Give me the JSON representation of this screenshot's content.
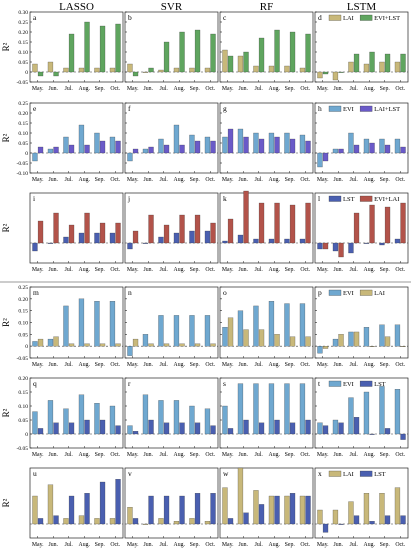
{
  "figure": {
    "columns": [
      "LASSO",
      "SVR",
      "RF",
      "LSTM"
    ],
    "months": [
      "May.",
      "Jun.",
      "Jul.",
      "Aug.",
      "Sep.",
      "Oct."
    ],
    "ylabel": "R²"
  },
  "colors": {
    "LAI": "#C8B87A",
    "EVI": "#6FA8D0",
    "LST": "#4A5FB0",
    "EVI+LST": "#5FA55F",
    "LAI+LST": "#6A5AC8",
    "EVI+LAI": "#B2534A"
  },
  "chart_data": [
    {
      "type": "bar",
      "panel": "a",
      "legend": [
        "LAI",
        "EVI+LST"
      ],
      "categories": [
        "May.",
        "Jun.",
        "Jul.",
        "Aug.",
        "Sep.",
        "Oct."
      ],
      "ylim": [
        -0.05,
        0.3
      ],
      "yticks": [
        -0.05,
        0,
        0.05,
        0.1,
        0.15,
        0.2,
        0.25,
        0.3
      ],
      "series": [
        {
          "name": "LAI",
          "values": [
            0.04,
            0.05,
            0.02,
            0.02,
            0.02,
            0.02
          ]
        },
        {
          "name": "EVI+LST",
          "values": [
            -0.02,
            -0.02,
            0.19,
            0.25,
            0.23,
            0.24
          ]
        }
      ]
    },
    {
      "type": "bar",
      "panel": "b",
      "legend": [
        "LAI",
        "EVI+LST"
      ],
      "categories": [
        "May.",
        "Jun.",
        "Jul.",
        "Aug.",
        "Sep.",
        "Oct."
      ],
      "ylim": [
        -0.05,
        0.3
      ],
      "series": [
        {
          "name": "LAI",
          "values": [
            0.04,
            0.0,
            0.01,
            0.02,
            0.02,
            0.02
          ]
        },
        {
          "name": "EVI+LST",
          "values": [
            -0.02,
            0.02,
            0.15,
            0.2,
            0.21,
            0.19
          ]
        }
      ]
    },
    {
      "type": "bar",
      "panel": "c",
      "legend": [
        "LAI",
        "EVI+LST"
      ],
      "categories": [
        "May.",
        "Jun.",
        "Jul.",
        "Aug.",
        "Sep.",
        "Oct."
      ],
      "ylim": [
        -0.05,
        0.3
      ],
      "series": [
        {
          "name": "LAI",
          "values": [
            0.11,
            0.08,
            0.03,
            0.03,
            0.03,
            0.02
          ]
        },
        {
          "name": "EVI+LST",
          "values": [
            0.08,
            0.1,
            0.17,
            0.21,
            0.2,
            0.19
          ]
        }
      ]
    },
    {
      "type": "bar",
      "panel": "d",
      "legend": [
        "LAI",
        "EVI+LST"
      ],
      "categories": [
        "May.",
        "Jun.",
        "Jul.",
        "Aug.",
        "Sep.",
        "Oct."
      ],
      "ylim": [
        -0.05,
        0.3
      ],
      "series": [
        {
          "name": "LAI",
          "values": [
            -0.03,
            -0.04,
            0.05,
            0.04,
            0.05,
            0.05
          ]
        },
        {
          "name": "EVI+LST",
          "values": [
            -0.01,
            0.0,
            0.09,
            0.1,
            0.09,
            0.09
          ]
        }
      ]
    },
    {
      "type": "bar",
      "panel": "e",
      "legend": [
        "EVI",
        "LAI+LST"
      ],
      "categories": [
        "May.",
        "Jun.",
        "Jul.",
        "Aug.",
        "Sep.",
        "Oct."
      ],
      "ylim": [
        -0.1,
        0.25
      ],
      "yticks": [
        -0.1,
        -0.05,
        0,
        0.05,
        0.1,
        0.15,
        0.2,
        0.25
      ],
      "series": [
        {
          "name": "EVI",
          "values": [
            -0.04,
            0.02,
            0.08,
            0.14,
            0.1,
            0.08
          ]
        },
        {
          "name": "LAI+LST",
          "values": [
            0.03,
            0.03,
            0.04,
            0.04,
            0.06,
            0.06
          ]
        }
      ]
    },
    {
      "type": "bar",
      "panel": "f",
      "legend": [
        "EVI",
        "LAI+LST"
      ],
      "categories": [
        "May.",
        "Jun.",
        "Jul.",
        "Aug.",
        "Sep.",
        "Oct."
      ],
      "ylim": [
        -0.1,
        0.25
      ],
      "series": [
        {
          "name": "EVI",
          "values": [
            -0.04,
            0.02,
            0.07,
            0.14,
            0.09,
            0.08
          ]
        },
        {
          "name": "LAI+LST",
          "values": [
            0.02,
            0.03,
            0.04,
            0.04,
            0.06,
            0.06
          ]
        }
      ]
    },
    {
      "type": "bar",
      "panel": "g",
      "legend": [
        "EVI",
        "LAI+LST"
      ],
      "categories": [
        "May.",
        "Jun.",
        "Jul.",
        "Aug.",
        "Sep.",
        "Oct."
      ],
      "ylim": [
        -0.1,
        0.25
      ],
      "series": [
        {
          "name": "EVI",
          "values": [
            0.08,
            0.12,
            0.1,
            0.1,
            0.1,
            0.09
          ]
        },
        {
          "name": "LAI+LST",
          "values": [
            0.12,
            0.08,
            0.07,
            0.08,
            0.07,
            0.06
          ]
        }
      ]
    },
    {
      "type": "bar",
      "panel": "h",
      "legend": [
        "EVI",
        "LAI+LST"
      ],
      "categories": [
        "May.",
        "Jun.",
        "Jul.",
        "Aug.",
        "Sep.",
        "Oct."
      ],
      "ylim": [
        -0.1,
        0.25
      ],
      "series": [
        {
          "name": "EVI",
          "values": [
            -0.07,
            0.02,
            0.1,
            0.07,
            0.07,
            0.07
          ]
        },
        {
          "name": "LAI+LST",
          "values": [
            -0.04,
            0.02,
            0.04,
            0.05,
            0.04,
            0.03
          ]
        }
      ]
    },
    {
      "type": "bar",
      "panel": "i",
      "legend": [
        "LST",
        "EVI+LAI"
      ],
      "categories": [
        "May.",
        "Jun.",
        "Jul.",
        "Aug.",
        "Sep.",
        "Oct."
      ],
      "ylim": [
        -0.1,
        0.25
      ],
      "series": [
        {
          "name": "LST",
          "values": [
            -0.04,
            0.0,
            0.03,
            0.05,
            0.05,
            0.05
          ]
        },
        {
          "name": "EVI+LAI",
          "values": [
            0.11,
            0.15,
            0.09,
            0.15,
            0.1,
            0.1
          ]
        }
      ]
    },
    {
      "type": "bar",
      "panel": "j",
      "legend": [
        "LST",
        "EVI+LAI"
      ],
      "categories": [
        "May.",
        "Jun.",
        "Jul.",
        "Aug.",
        "Sep.",
        "Oct."
      ],
      "ylim": [
        -0.1,
        0.25
      ],
      "series": [
        {
          "name": "LST",
          "values": [
            -0.03,
            0.0,
            0.03,
            0.05,
            0.06,
            0.06
          ]
        },
        {
          "name": "EVI+LAI",
          "values": [
            0.06,
            0.14,
            0.09,
            0.14,
            0.14,
            0.1
          ]
        }
      ]
    },
    {
      "type": "bar",
      "panel": "k",
      "legend": [
        "LST",
        "EVI+LAI"
      ],
      "categories": [
        "May.",
        "Jun.",
        "Jul.",
        "Aug.",
        "Sep.",
        "Oct."
      ],
      "ylim": [
        -0.1,
        0.25
      ],
      "series": [
        {
          "name": "LST",
          "values": [
            0.01,
            0.04,
            0.02,
            0.02,
            0.02,
            0.02
          ]
        },
        {
          "name": "EVI+LAI",
          "values": [
            0.12,
            0.26,
            0.2,
            0.2,
            0.19,
            0.2
          ]
        }
      ]
    },
    {
      "type": "bar",
      "panel": "l",
      "legend": [
        "LST",
        "EVI+LAI"
      ],
      "categories": [
        "May.",
        "Jun.",
        "Jul.",
        "Aug.",
        "Sep.",
        "Oct."
      ],
      "ylim": [
        -0.1,
        0.25
      ],
      "series": [
        {
          "name": "LST",
          "values": [
            -0.03,
            -0.04,
            -0.05,
            0.0,
            -0.01,
            0.02
          ]
        },
        {
          "name": "EVI+LAI",
          "values": [
            -0.03,
            -0.07,
            0.15,
            0.19,
            0.18,
            0.2
          ]
        }
      ]
    },
    {
      "type": "bar",
      "panel": "m",
      "legend": [
        "EVI",
        "LAI"
      ],
      "categories": [
        "May.",
        "Jun.",
        "Jul.",
        "Aug.",
        "Sep.",
        "Oct."
      ],
      "ylim": [
        -0.05,
        0.25
      ],
      "yticks": [
        -0.05,
        0,
        0.05,
        0.1,
        0.15,
        0.2,
        0.25
      ],
      "series": [
        {
          "name": "EVI",
          "values": [
            0.02,
            0.03,
            0.17,
            0.2,
            0.19,
            0.19
          ]
        },
        {
          "name": "LAI",
          "values": [
            0.03,
            0.04,
            0.01,
            0.01,
            0.01,
            0.01
          ]
        }
      ]
    },
    {
      "type": "bar",
      "panel": "n",
      "legend": [
        "EVI",
        "LAI"
      ],
      "categories": [
        "May.",
        "Jun.",
        "Jul.",
        "Aug.",
        "Sep.",
        "Oct."
      ],
      "ylim": [
        -0.05,
        0.25
      ],
      "series": [
        {
          "name": "EVI",
          "values": [
            -0.04,
            0.05,
            0.13,
            0.13,
            0.13,
            0.13
          ]
        },
        {
          "name": "LAI",
          "values": [
            0.03,
            0.01,
            0.01,
            0.01,
            0.01,
            0.01
          ]
        }
      ]
    },
    {
      "type": "bar",
      "panel": "o",
      "legend": [
        "EVI",
        "LAI"
      ],
      "categories": [
        "May.",
        "Jun.",
        "Jul.",
        "Aug.",
        "Sep.",
        "Oct."
      ],
      "ylim": [
        -0.05,
        0.25
      ],
      "series": [
        {
          "name": "EVI",
          "values": [
            0.08,
            0.15,
            0.17,
            0.19,
            0.18,
            0.18
          ]
        },
        {
          "name": "LAI",
          "values": [
            0.12,
            0.07,
            0.07,
            0.05,
            0.04,
            0.04
          ]
        }
      ]
    },
    {
      "type": "bar",
      "panel": "p",
      "legend": [
        "EVI",
        "LAI"
      ],
      "categories": [
        "May.",
        "Jun.",
        "Jul.",
        "Aug.",
        "Sep.",
        "Oct."
      ],
      "ylim": [
        -0.05,
        0.25
      ],
      "series": [
        {
          "name": "EVI",
          "values": [
            -0.03,
            0.03,
            0.06,
            0.08,
            0.09,
            0.09
          ]
        },
        {
          "name": "LAI",
          "values": [
            -0.01,
            0.05,
            0.06,
            0.0,
            0.04,
            0.0
          ]
        }
      ]
    },
    {
      "type": "bar",
      "panel": "q",
      "legend": [
        "EVI",
        "LST"
      ],
      "categories": [
        "May.",
        "Jun.",
        "Jul.",
        "Aug.",
        "Sep.",
        "Oct."
      ],
      "ylim": [
        -0.05,
        0.2
      ],
      "yticks": [
        -0.05,
        0,
        0.05,
        0.1,
        0.15,
        0.2
      ],
      "series": [
        {
          "name": "EVI",
          "values": [
            0.08,
            0.12,
            0.09,
            0.14,
            0.11,
            0.1
          ]
        },
        {
          "name": "LST",
          "values": [
            0.02,
            0.04,
            0.04,
            0.05,
            0.05,
            0.03
          ]
        }
      ]
    },
    {
      "type": "bar",
      "panel": "r",
      "legend": [
        "EVI",
        "LST"
      ],
      "categories": [
        "May.",
        "Jun.",
        "Jul.",
        "Aug.",
        "Sep.",
        "Oct."
      ],
      "ylim": [
        -0.05,
        0.2
      ],
      "series": [
        {
          "name": "EVI",
          "values": [
            0.03,
            0.14,
            0.12,
            0.12,
            0.1,
            0.09
          ]
        },
        {
          "name": "LST",
          "values": [
            0.01,
            0.05,
            0.04,
            0.04,
            0.04,
            0.03
          ]
        }
      ]
    },
    {
      "type": "bar",
      "panel": "s",
      "legend": [
        "EVI",
        "LST"
      ],
      "categories": [
        "May.",
        "Jun.",
        "Jul.",
        "Aug.",
        "Sep.",
        "Oct."
      ],
      "ylim": [
        -0.05,
        0.2
      ],
      "series": [
        {
          "name": "EVI",
          "values": [
            0.1,
            0.18,
            0.18,
            0.18,
            0.18,
            0.18
          ]
        },
        {
          "name": "LST",
          "values": [
            0.02,
            0.05,
            0.04,
            0.05,
            0.04,
            0.05
          ]
        }
      ]
    },
    {
      "type": "bar",
      "panel": "t",
      "legend": [
        "EVI",
        "LST"
      ],
      "categories": [
        "May.",
        "Jun.",
        "Jul.",
        "Aug.",
        "Sep.",
        "Oct."
      ],
      "ylim": [
        -0.05,
        0.2
      ],
      "series": [
        {
          "name": "EVI",
          "values": [
            0.04,
            0.05,
            0.13,
            0.15,
            0.17,
            0.16
          ]
        },
        {
          "name": "LST",
          "values": [
            0.03,
            0.04,
            0.06,
            0.0,
            0.02,
            -0.02
          ]
        }
      ]
    },
    {
      "type": "bar",
      "panel": "u",
      "legend": [
        "LAI",
        "LST"
      ],
      "categories": [
        "May.",
        "Jun.",
        "Jul.",
        "Aug.",
        "Sep.",
        "Oct."
      ],
      "ylim": [
        -0.05,
        0.2
      ],
      "series": [
        {
          "name": "LAI",
          "values": [
            0.1,
            0.14,
            0.02,
            0.03,
            0.02,
            0.02
          ]
        },
        {
          "name": "LST",
          "values": [
            0.02,
            0.03,
            0.1,
            0.11,
            0.15,
            0.16
          ]
        }
      ]
    },
    {
      "type": "bar",
      "panel": "v",
      "legend": [
        "LAI",
        "LST"
      ],
      "categories": [
        "May.",
        "Jun.",
        "Jul.",
        "Aug.",
        "Sep.",
        "Oct."
      ],
      "ylim": [
        -0.05,
        0.2
      ],
      "series": [
        {
          "name": "LAI",
          "values": [
            0.06,
            0.0,
            0.02,
            0.01,
            0.02,
            0.01
          ]
        },
        {
          "name": "LST",
          "values": [
            0.02,
            0.1,
            0.1,
            0.1,
            0.11,
            0.11
          ]
        }
      ]
    },
    {
      "type": "bar",
      "panel": "w",
      "legend": [
        "LAI",
        "LST"
      ],
      "categories": [
        "May.",
        "Jun.",
        "Jul.",
        "Aug.",
        "Sep.",
        "Oct."
      ],
      "ylim": [
        -0.05,
        0.2
      ],
      "series": [
        {
          "name": "LAI",
          "values": [
            0.13,
            0.2,
            0.12,
            0.1,
            0.1,
            0.1
          ]
        },
        {
          "name": "LST",
          "values": [
            0.02,
            0.04,
            0.07,
            0.1,
            0.11,
            0.1
          ]
        }
      ]
    },
    {
      "type": "bar",
      "panel": "x",
      "legend": [
        "LAI",
        "LST"
      ],
      "categories": [
        "May.",
        "Jun.",
        "Jul.",
        "Aug.",
        "Sep.",
        "Oct."
      ],
      "ylim": [
        -0.05,
        0.2
      ],
      "series": [
        {
          "name": "LAI",
          "values": [
            0.05,
            0.05,
            0.08,
            0.11,
            0.11,
            0.13
          ]
        },
        {
          "name": "LST",
          "values": [
            -0.03,
            0.0,
            0.03,
            0.01,
            0.03,
            0.03
          ]
        }
      ]
    }
  ]
}
